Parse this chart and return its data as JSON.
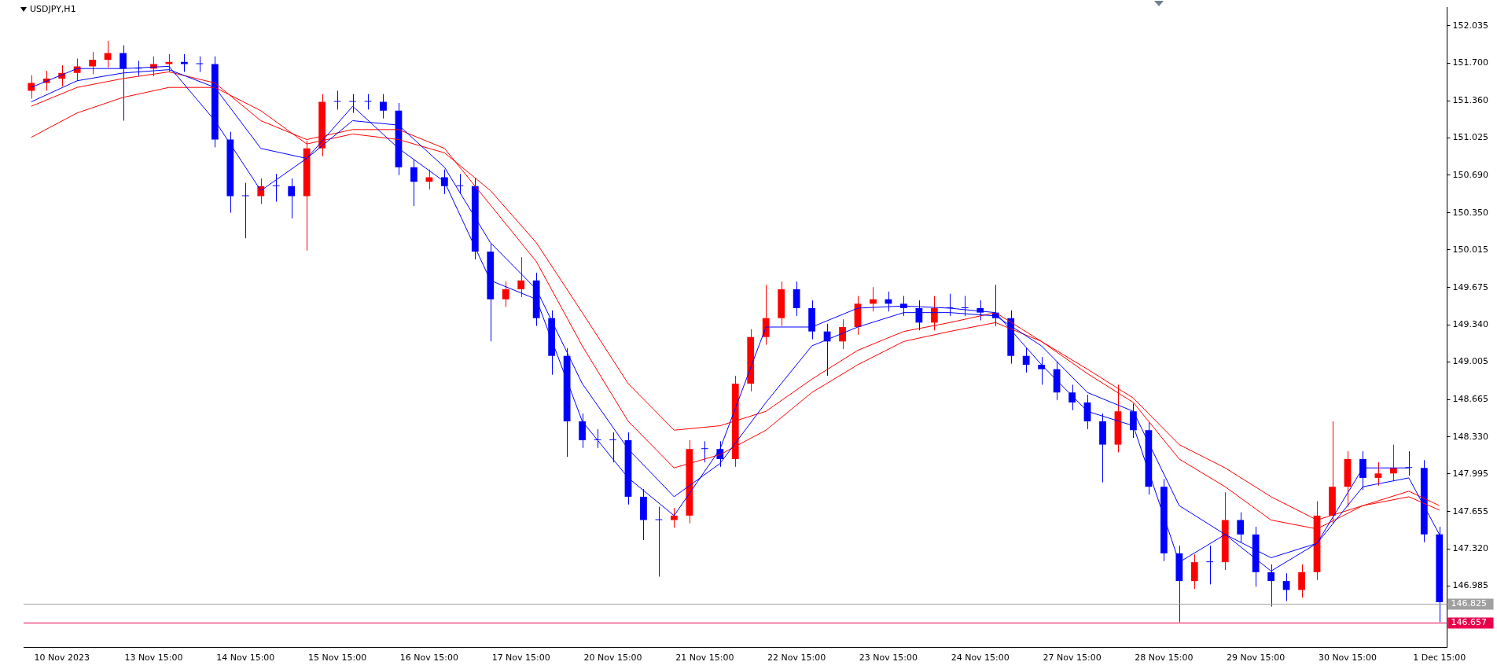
{
  "chart_data": {
    "type": "candlestick",
    "title": "USDJPY,H1",
    "categories": [
      null,
      null,
      "10 Nov 2023",
      null,
      null,
      null,
      null,
      null,
      "13 Nov 15:00",
      null,
      null,
      null,
      null,
      null,
      "14 Nov 15:00",
      null,
      null,
      null,
      null,
      null,
      "15 Nov 15:00",
      null,
      null,
      null,
      null,
      null,
      "16 Nov 15:00",
      null,
      null,
      null,
      null,
      null,
      "17 Nov 15:00",
      null,
      null,
      null,
      null,
      null,
      "20 Nov 15:00",
      null,
      null,
      null,
      null,
      null,
      "21 Nov 15:00",
      null,
      null,
      null,
      null,
      null,
      "22 Nov 15:00",
      null,
      null,
      null,
      null,
      null,
      "23 Nov 15:00",
      null,
      null,
      null,
      null,
      null,
      "24 Nov 15:00",
      null,
      null,
      null,
      null,
      null,
      "27 Nov 15:00",
      null,
      null,
      null,
      null,
      null,
      "28 Nov 15:00",
      null,
      null,
      null,
      null,
      null,
      "29 Nov 15:00",
      null,
      null,
      null,
      null,
      null,
      "30 Nov 15:00",
      null,
      null,
      null,
      null,
      null,
      "1 Dec 15:00"
    ],
    "ohlc": [
      [
        151.45,
        151.59,
        151.38,
        151.52
      ],
      [
        151.52,
        151.63,
        151.45,
        151.56
      ],
      [
        151.56,
        151.68,
        151.49,
        151.61
      ],
      [
        151.61,
        151.74,
        151.54,
        151.67
      ],
      [
        151.67,
        151.8,
        151.6,
        151.73
      ],
      [
        151.73,
        151.9,
        151.66,
        151.79
      ],
      [
        151.79,
        151.86,
        151.18,
        151.65
      ],
      [
        151.65,
        151.72,
        151.58,
        151.65
      ],
      [
        151.65,
        151.76,
        151.58,
        151.69
      ],
      [
        151.69,
        151.78,
        151.62,
        151.71
      ],
      [
        151.71,
        151.78,
        151.62,
        151.69
      ],
      [
        151.69,
        151.76,
        151.62,
        151.69
      ],
      [
        151.69,
        151.76,
        150.94,
        151.01
      ],
      [
        151.01,
        151.08,
        150.35,
        150.5
      ],
      [
        150.5,
        150.62,
        150.12,
        150.5
      ],
      [
        150.5,
        150.66,
        150.43,
        150.59
      ],
      [
        150.59,
        150.7,
        150.45,
        150.59
      ],
      [
        150.59,
        150.66,
        150.3,
        150.5
      ],
      [
        150.5,
        151.0,
        150.01,
        150.93
      ],
      [
        150.93,
        151.42,
        150.86,
        151.35
      ],
      [
        151.35,
        151.45,
        151.28,
        151.35
      ],
      [
        151.35,
        151.42,
        151.25,
        151.35
      ],
      [
        151.35,
        151.42,
        151.28,
        151.35
      ],
      [
        151.35,
        151.42,
        151.2,
        151.27
      ],
      [
        151.27,
        151.34,
        150.69,
        150.76
      ],
      [
        150.76,
        150.83,
        150.41,
        150.63
      ],
      [
        150.63,
        150.74,
        150.56,
        150.67
      ],
      [
        150.67,
        150.74,
        150.52,
        150.59
      ],
      [
        150.59,
        150.7,
        150.52,
        150.59
      ],
      [
        150.59,
        150.66,
        149.93,
        150.0
      ],
      [
        150.0,
        150.07,
        149.19,
        149.57
      ],
      [
        149.57,
        149.73,
        149.5,
        149.66
      ],
      [
        149.66,
        149.95,
        149.59,
        149.74
      ],
      [
        149.74,
        149.81,
        149.33,
        149.4
      ],
      [
        149.4,
        149.47,
        148.89,
        149.06
      ],
      [
        149.06,
        149.13,
        148.15,
        148.47
      ],
      [
        148.47,
        148.54,
        148.23,
        148.3
      ],
      [
        148.3,
        148.4,
        148.23,
        148.3
      ],
      [
        148.3,
        148.37,
        148.1,
        148.3
      ],
      [
        148.3,
        148.37,
        147.72,
        147.79
      ],
      [
        147.79,
        147.86,
        147.4,
        147.58
      ],
      [
        147.58,
        147.7,
        147.07,
        147.58
      ],
      [
        147.58,
        147.69,
        147.51,
        147.62
      ],
      [
        147.62,
        148.3,
        147.55,
        148.22
      ],
      [
        148.22,
        148.29,
        148.1,
        148.22
      ],
      [
        148.22,
        148.29,
        148.06,
        148.13
      ],
      [
        148.13,
        148.88,
        148.06,
        148.81
      ],
      [
        148.81,
        149.3,
        148.74,
        149.23
      ],
      [
        149.23,
        149.7,
        149.16,
        149.4
      ],
      [
        149.4,
        149.73,
        149.33,
        149.66
      ],
      [
        149.66,
        149.73,
        149.42,
        149.49
      ],
      [
        149.49,
        149.56,
        149.21,
        149.28
      ],
      [
        149.28,
        149.35,
        148.88,
        149.19
      ],
      [
        149.19,
        149.39,
        149.12,
        149.32
      ],
      [
        149.32,
        149.6,
        149.25,
        149.53
      ],
      [
        149.53,
        149.68,
        149.46,
        149.57
      ],
      [
        149.57,
        149.64,
        149.46,
        149.53
      ],
      [
        149.53,
        149.6,
        149.42,
        149.49
      ],
      [
        149.49,
        149.56,
        149.29,
        149.36
      ],
      [
        149.36,
        149.6,
        149.29,
        149.49
      ],
      [
        149.49,
        149.62,
        149.42,
        149.49
      ],
      [
        149.49,
        149.6,
        149.42,
        149.49
      ],
      [
        149.49,
        149.56,
        149.38,
        149.45
      ],
      [
        149.45,
        149.7,
        149.33,
        149.4
      ],
      [
        149.4,
        149.47,
        148.99,
        149.06
      ],
      [
        149.06,
        149.13,
        148.91,
        148.98
      ],
      [
        148.98,
        149.05,
        148.8,
        148.94
      ],
      [
        148.94,
        149.01,
        148.66,
        148.73
      ],
      [
        148.73,
        148.8,
        148.57,
        148.64
      ],
      [
        148.64,
        148.71,
        148.4,
        148.47
      ],
      [
        148.47,
        148.54,
        147.92,
        148.26
      ],
      [
        148.26,
        148.8,
        148.19,
        148.56
      ],
      [
        148.56,
        148.63,
        148.32,
        148.39
      ],
      [
        148.39,
        148.46,
        147.81,
        147.88
      ],
      [
        147.88,
        147.95,
        147.21,
        147.28
      ],
      [
        147.28,
        147.35,
        146.66,
        147.03
      ],
      [
        147.03,
        147.27,
        146.96,
        147.2
      ],
      [
        147.2,
        147.35,
        147.0,
        147.2
      ],
      [
        147.2,
        147.83,
        147.13,
        147.58
      ],
      [
        147.58,
        147.65,
        147.38,
        147.45
      ],
      [
        147.45,
        147.52,
        146.98,
        147.11
      ],
      [
        147.11,
        147.18,
        146.8,
        147.03
      ],
      [
        147.03,
        147.1,
        146.85,
        146.95
      ],
      [
        146.95,
        147.18,
        146.88,
        147.11
      ],
      [
        147.11,
        147.75,
        147.04,
        147.62
      ],
      [
        147.62,
        148.47,
        147.55,
        147.88
      ],
      [
        147.88,
        148.2,
        147.7,
        148.13
      ],
      [
        148.13,
        148.2,
        147.85,
        147.96
      ],
      [
        147.96,
        148.1,
        147.89,
        148.0
      ],
      [
        148.0,
        148.26,
        147.93,
        148.05
      ],
      [
        148.05,
        148.2,
        147.98,
        148.05
      ],
      [
        148.05,
        148.12,
        147.38,
        147.45
      ],
      [
        147.45,
        147.52,
        146.66,
        146.84
      ]
    ],
    "colors": [
      "#ff0000",
      "#ff0000",
      "#ff0000",
      "#ff0000",
      "#ff0000",
      "#ff0000",
      "#0000ff",
      "#0000ff",
      "#ff0000",
      "#ff0000",
      "#0000ff",
      "#0000ff",
      "#0000ff",
      "#0000ff",
      "#0000ff",
      "#ff0000",
      "#0000ff",
      "#0000ff",
      "#ff0000",
      "#ff0000",
      "#0000ff",
      "#0000ff",
      "#0000ff",
      "#0000ff",
      "#0000ff",
      "#0000ff",
      "#ff0000",
      "#0000ff",
      "#0000ff",
      "#0000ff",
      "#0000ff",
      "#ff0000",
      "#ff0000",
      "#0000ff",
      "#0000ff",
      "#0000ff",
      "#0000ff",
      "#0000ff",
      "#0000ff",
      "#0000ff",
      "#0000ff",
      "#0000ff",
      "#ff0000",
      "#ff0000",
      "#0000ff",
      "#0000ff",
      "#ff0000",
      "#ff0000",
      "#ff0000",
      "#ff0000",
      "#0000ff",
      "#0000ff",
      "#0000ff",
      "#ff0000",
      "#ff0000",
      "#ff0000",
      "#0000ff",
      "#0000ff",
      "#0000ff",
      "#ff0000",
      "#0000ff",
      "#0000ff",
      "#0000ff",
      "#0000ff",
      "#0000ff",
      "#0000ff",
      "#0000ff",
      "#0000ff",
      "#0000ff",
      "#0000ff",
      "#0000ff",
      "#ff0000",
      "#0000ff",
      "#0000ff",
      "#0000ff",
      "#0000ff",
      "#ff0000",
      "#0000ff",
      "#ff0000",
      "#0000ff",
      "#0000ff",
      "#0000ff",
      "#0000ff",
      "#ff0000",
      "#ff0000",
      "#ff0000",
      "#ff0000",
      "#0000ff",
      "#ff0000",
      "#ff0000",
      "#0000ff",
      "#0000ff",
      "#0000ff"
    ],
    "series": [
      {
        "type": "line",
        "color": "#0000ff",
        "values": [
          151.48,
          null,
          null,
          151.65,
          null,
          null,
          151.65,
          null,
          null,
          151.67,
          null,
          null,
          151.18,
          null,
          null,
          150.55,
          null,
          null,
          150.84,
          null,
          null,
          151.31,
          null,
          null,
          150.93,
          null,
          null,
          150.63,
          null,
          null,
          149.74,
          null,
          null,
          149.57,
          null,
          null,
          148.47,
          null,
          null,
          147.96,
          null,
          null,
          147.62,
          null,
          null,
          148.22,
          null,
          null,
          149.32,
          null,
          null,
          149.32,
          null,
          null,
          149.49,
          null,
          null,
          149.51,
          null,
          null,
          149.49,
          null,
          null,
          149.45,
          null,
          null,
          148.98,
          null,
          null,
          148.56,
          null,
          null,
          148.43,
          null,
          null,
          147.2,
          null,
          null,
          147.45,
          null,
          null,
          147.12,
          null,
          null,
          147.37,
          null,
          null,
          148.05,
          null,
          null,
          148.05,
          null,
          null
        ]
      },
      {
        "type": "line",
        "color": "#0000ff",
        "values": [
          151.35,
          null,
          null,
          151.54,
          null,
          null,
          151.61,
          null,
          null,
          151.64,
          null,
          null,
          151.48,
          null,
          null,
          150.93,
          null,
          null,
          150.84,
          null,
          null,
          151.18,
          null,
          null,
          151.14,
          null,
          null,
          150.76,
          null,
          null,
          150.08,
          null,
          null,
          149.66,
          null,
          null,
          148.81,
          null,
          null,
          148.22,
          null,
          null,
          147.79,
          null,
          null,
          148.09,
          null,
          null,
          148.64,
          null,
          null,
          149.15,
          null,
          null,
          149.32,
          null,
          null,
          149.45,
          null,
          null,
          149.45,
          null,
          null,
          149.42,
          null,
          null,
          149.15,
          null,
          null,
          148.73,
          null,
          null,
          148.56,
          null,
          null,
          147.71,
          null,
          null,
          147.45,
          null,
          null,
          147.24,
          null,
          null,
          147.37,
          null,
          null,
          147.88,
          null,
          null,
          147.96,
          null,
          147.45
        ]
      },
      {
        "type": "line",
        "color": "#ff0000",
        "values": [
          151.31,
          null,
          null,
          151.48,
          null,
          null,
          151.56,
          null,
          null,
          151.62,
          null,
          null,
          151.52,
          null,
          null,
          151.18,
          null,
          null,
          151.01,
          null,
          null,
          151.1,
          null,
          null,
          151.1,
          null,
          null,
          150.93,
          null,
          null,
          150.42,
          null,
          null,
          149.91,
          null,
          null,
          149.15,
          null,
          null,
          148.47,
          null,
          null,
          148.05,
          null,
          null,
          148.17,
          null,
          null,
          148.39,
          null,
          null,
          148.73,
          null,
          null,
          148.98,
          null,
          null,
          149.19,
          null,
          null,
          149.28,
          null,
          null,
          149.36,
          null,
          null,
          149.19,
          null,
          null,
          148.9,
          null,
          null,
          148.64,
          null,
          null,
          148.13,
          null,
          null,
          147.88,
          null,
          null,
          147.58,
          null,
          null,
          147.5,
          null,
          null,
          147.71,
          null,
          null,
          147.84,
          null,
          147.71
        ]
      },
      {
        "type": "line",
        "color": "#ff0000",
        "values": [
          151.03,
          null,
          null,
          151.25,
          null,
          null,
          151.39,
          null,
          null,
          151.48,
          null,
          null,
          151.48,
          null,
          null,
          151.27,
          null,
          null,
          150.97,
          null,
          null,
          151.06,
          null,
          null,
          151.01,
          null,
          null,
          150.89,
          null,
          null,
          150.55,
          null,
          null,
          150.08,
          null,
          null,
          149.45,
          null,
          null,
          148.81,
          null,
          null,
          148.39,
          null,
          null,
          148.43,
          null,
          null,
          148.56,
          null,
          null,
          148.85,
          null,
          null,
          149.11,
          null,
          null,
          149.28,
          null,
          null,
          149.36,
          null,
          null,
          149.45,
          null,
          null,
          149.19,
          null,
          null,
          148.94,
          null,
          null,
          148.68,
          null,
          null,
          148.26,
          null,
          null,
          148.05,
          null,
          null,
          147.79,
          null,
          null,
          147.58,
          null,
          null,
          147.71,
          null,
          null,
          147.79,
          null,
          147.67
        ]
      }
    ],
    "ylim": [
      146.43,
      152.2
    ],
    "yticks": [
      {
        "value": 146.985,
        "label": "146.985"
      },
      {
        "value": 147.32,
        "label": "147.320"
      },
      {
        "value": 147.655,
        "label": "147.655"
      },
      {
        "value": 147.995,
        "label": "147.995"
      },
      {
        "value": 148.33,
        "label": "148.330"
      },
      {
        "value": 148.665,
        "label": "148.665"
      },
      {
        "value": 149.005,
        "label": "149.005"
      },
      {
        "value": 149.34,
        "label": "149.340"
      },
      {
        "value": 149.675,
        "label": "149.675"
      },
      {
        "value": 150.015,
        "label": "150.015"
      },
      {
        "value": 150.35,
        "label": "150.350"
      },
      {
        "value": 150.69,
        "label": "150.690"
      },
      {
        "value": 151.025,
        "label": "151.025"
      },
      {
        "value": 151.36,
        "label": "151.360"
      },
      {
        "value": 151.7,
        "label": "151.700"
      },
      {
        "value": 152.035,
        "label": "152.035"
      }
    ],
    "ref_lines": [
      {
        "axis": "y",
        "value": 146.825,
        "label": "146.825",
        "color": "#a0a0a0"
      },
      {
        "axis": "y",
        "value": 146.657,
        "label": "146.657",
        "color": "#e8004c"
      }
    ],
    "grid": false,
    "legend": false
  }
}
